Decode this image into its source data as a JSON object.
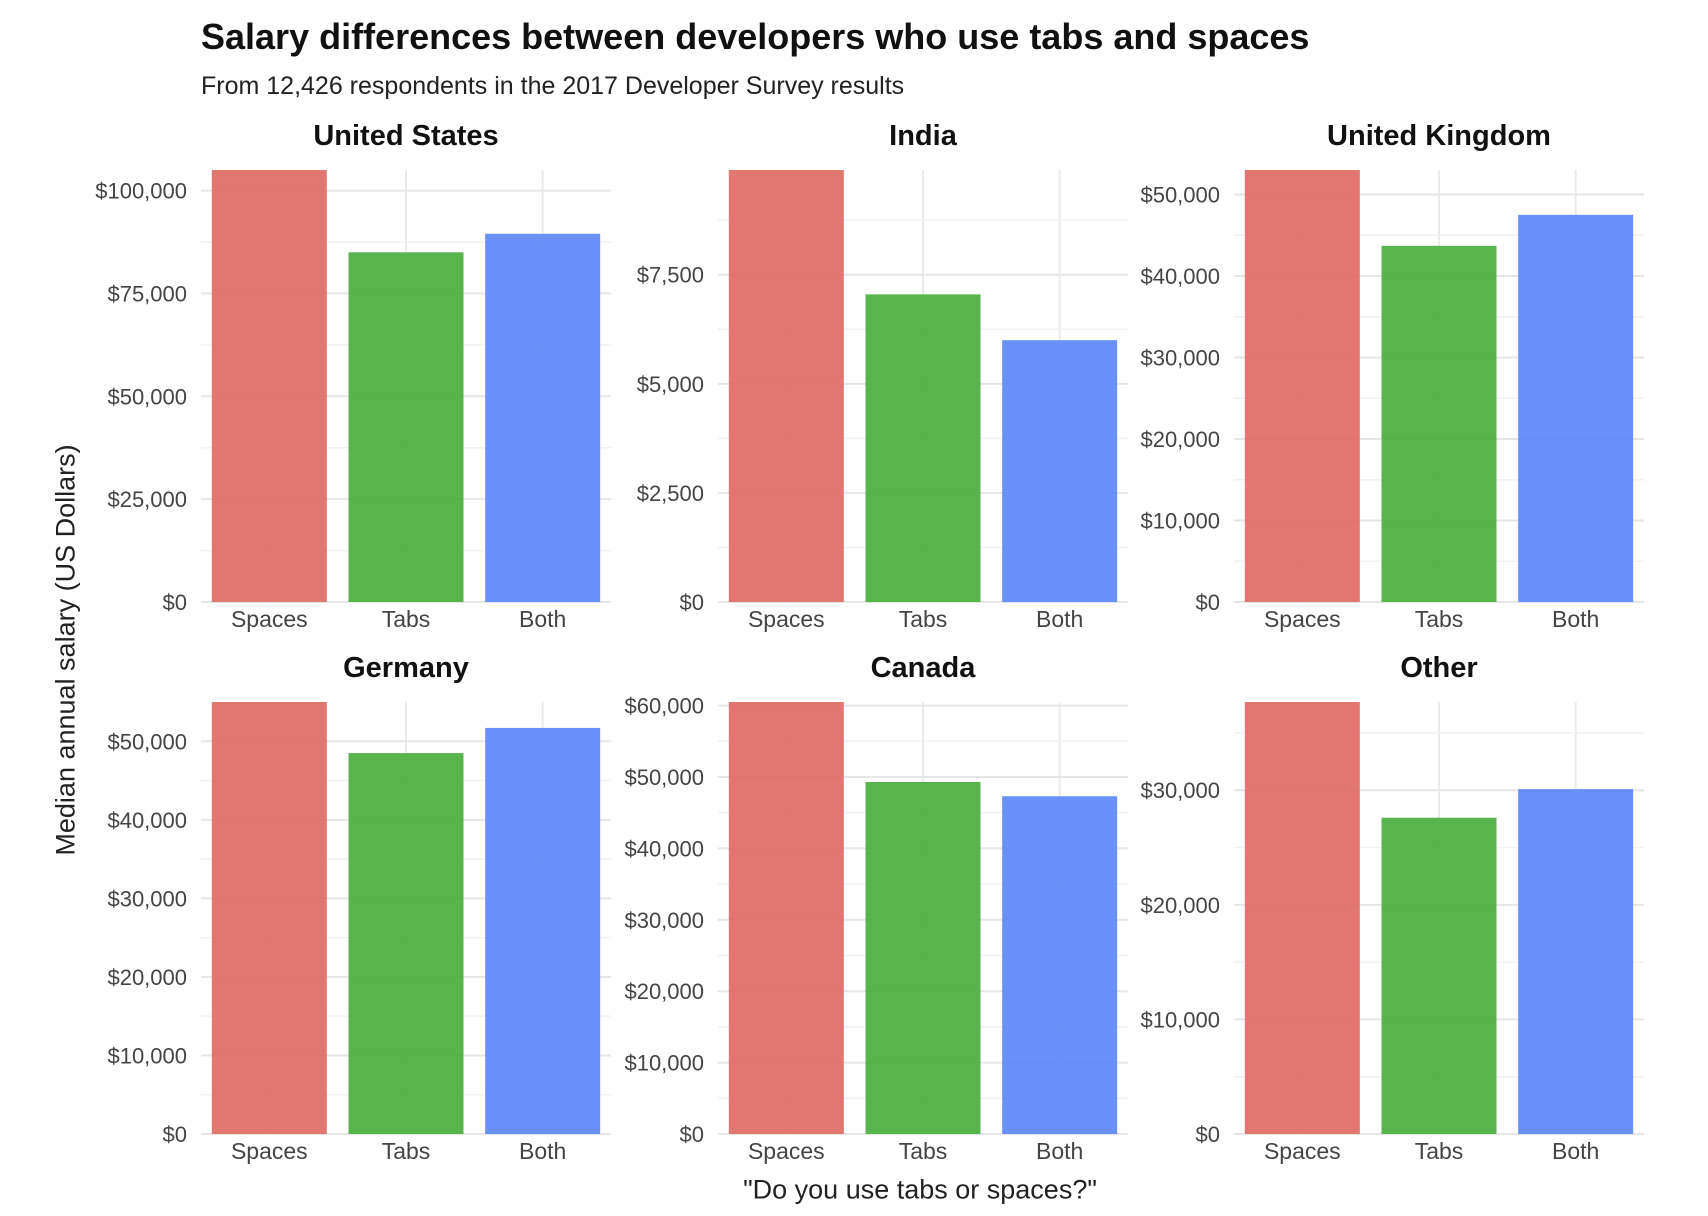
{
  "chart_data": {
    "type": "bar",
    "title": "Salary differences between developers who use tabs and spaces",
    "subtitle": "From 12,426 respondents in the 2017 Developer Survey results",
    "xlabel": "\"Do you use tabs or spaces?\"",
    "ylabel": "Median annual salary (US Dollars)",
    "categories": [
      "Spaces",
      "Tabs",
      "Both"
    ],
    "colors": {
      "Spaces": "#e06b66",
      "Tabs": "#4aaf3f",
      "Both": "#5d88f6"
    },
    "grid": true,
    "facets": [
      {
        "name": "United States",
        "values": [
          105000,
          85000,
          89500
        ],
        "ylim": [
          0,
          105000
        ],
        "yticks": [
          0,
          25000,
          50000,
          75000,
          100000
        ],
        "ytick_labels": [
          "$0",
          "$25,000",
          "$50,000",
          "$75,000",
          "$100,000"
        ]
      },
      {
        "name": "India",
        "values": [
          9900,
          7050,
          6000
        ],
        "ylim": [
          0,
          9900
        ],
        "yticks": [
          0,
          2500,
          5000,
          7500
        ],
        "ytick_labels": [
          "$0",
          "$2,500",
          "$5,000",
          "$7,500"
        ]
      },
      {
        "name": "United Kingdom",
        "values": [
          53000,
          43700,
          47500
        ],
        "ylim": [
          0,
          53000
        ],
        "yticks": [
          0,
          10000,
          20000,
          30000,
          40000,
          50000
        ],
        "ytick_labels": [
          "$0",
          "$10,000",
          "$20,000",
          "$30,000",
          "$40,000",
          "$50,000"
        ]
      },
      {
        "name": "Germany",
        "values": [
          55000,
          48500,
          51700
        ],
        "ylim": [
          0,
          55000
        ],
        "yticks": [
          0,
          10000,
          20000,
          30000,
          40000,
          50000
        ],
        "ytick_labels": [
          "$0",
          "$10,000",
          "$20,000",
          "$30,000",
          "$40,000",
          "$50,000"
        ]
      },
      {
        "name": "Canada",
        "values": [
          60500,
          49300,
          47300
        ],
        "ylim": [
          0,
          60500
        ],
        "yticks": [
          0,
          10000,
          20000,
          30000,
          40000,
          50000,
          60000
        ],
        "ytick_labels": [
          "$0",
          "$10,000",
          "$20,000",
          "$30,000",
          "$40,000",
          "$50,000",
          "$60,000"
        ]
      },
      {
        "name": "Other",
        "values": [
          37700,
          27600,
          30100
        ],
        "ylim": [
          0,
          37700
        ],
        "yticks": [
          0,
          10000,
          20000,
          30000
        ],
        "ytick_labels": [
          "$0",
          "$10,000",
          "$20,000",
          "$30,000"
        ]
      }
    ]
  }
}
